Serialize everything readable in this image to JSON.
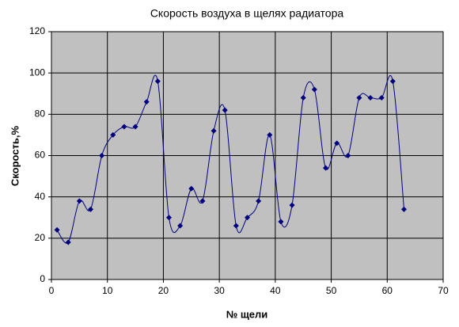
{
  "chart_data": {
    "type": "line",
    "title": "Скорость воздуха в щелях радиатора",
    "x_label": "№ щели",
    "y_label": "Скорость,%",
    "x": [
      1,
      3,
      5,
      7,
      9,
      11,
      13,
      15,
      17,
      19,
      21,
      23,
      25,
      27,
      29,
      31,
      33,
      35,
      37,
      39,
      41,
      43,
      45,
      47,
      49,
      51,
      53,
      55,
      57,
      59,
      61,
      63
    ],
    "series": [
      {
        "color": "#000080",
        "values": [
          24,
          18,
          38,
          34,
          60,
          70,
          74,
          74,
          86,
          96,
          30,
          26,
          44,
          38,
          72,
          82,
          26,
          30,
          38,
          70,
          28,
          36,
          88,
          92,
          54,
          66,
          60,
          88,
          88,
          88,
          96,
          34
        ]
      }
    ],
    "smooth": true,
    "marker": "diamond",
    "xlim": [
      0,
      70
    ],
    "xticks": [
      0,
      10,
      20,
      30,
      40,
      50,
      60,
      70
    ],
    "ylim": [
      0,
      120
    ],
    "yticks": [
      0,
      20,
      40,
      60,
      80,
      100,
      120
    ],
    "grid": true,
    "plot_background": "#c0c0c0"
  }
}
